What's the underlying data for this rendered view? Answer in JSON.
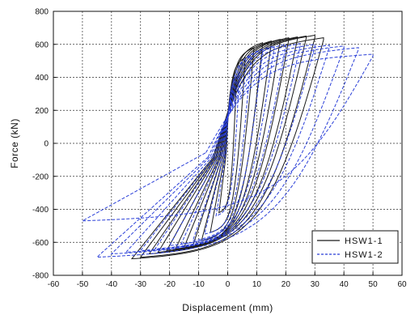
{
  "chart_data": {
    "type": "line",
    "xlabel": "Displacement (mm)",
    "ylabel": "Force (kN)",
    "xlim": [
      -60,
      60
    ],
    "ylim": [
      -800,
      800
    ],
    "xticks": [
      -60,
      -50,
      -40,
      -30,
      -20,
      -10,
      0,
      10,
      20,
      30,
      40,
      50,
      60
    ],
    "yticks": [
      -800,
      -600,
      -400,
      -200,
      0,
      200,
      400,
      600,
      800
    ],
    "xtick_labels": [
      "-60",
      "-50",
      "-40",
      "-30",
      "-20",
      "-10",
      "0",
      "10",
      "20",
      "30",
      "40",
      "50",
      "60"
    ],
    "ytick_labels": [
      "-800",
      "-600",
      "-400",
      "-200",
      "0",
      "200",
      "400",
      "600",
      "800"
    ],
    "grid": true,
    "legend_position": "bottom-right",
    "series": [
      {
        "name": "HSW1-1",
        "color": "#1a1a1a",
        "dash": "solid",
        "peak_displacements": [
          3,
          6,
          9,
          12,
          15,
          18,
          21,
          24,
          27,
          30,
          33
        ],
        "peak_positive_force": [
          400,
          520,
          580,
          610,
          620,
          630,
          640,
          645,
          650,
          655,
          640
        ],
        "peak_negative_force": [
          -420,
          -540,
          -590,
          -620,
          -630,
          -640,
          -650,
          -660,
          -670,
          -690,
          -700
        ]
      },
      {
        "name": "HSW1-2",
        "color": "#2a3fd8",
        "dash": "dashed",
        "peak_displacements": [
          4,
          8,
          12,
          16,
          20,
          25,
          30,
          35,
          40,
          45,
          50
        ],
        "peak_positive_force": [
          420,
          530,
          570,
          590,
          600,
          605,
          600,
          595,
          590,
          580,
          540
        ],
        "peak_negative_force": [
          -440,
          -550,
          -590,
          -610,
          -620,
          -640,
          -650,
          -660,
          -670,
          -690,
          -470
        ]
      }
    ]
  }
}
